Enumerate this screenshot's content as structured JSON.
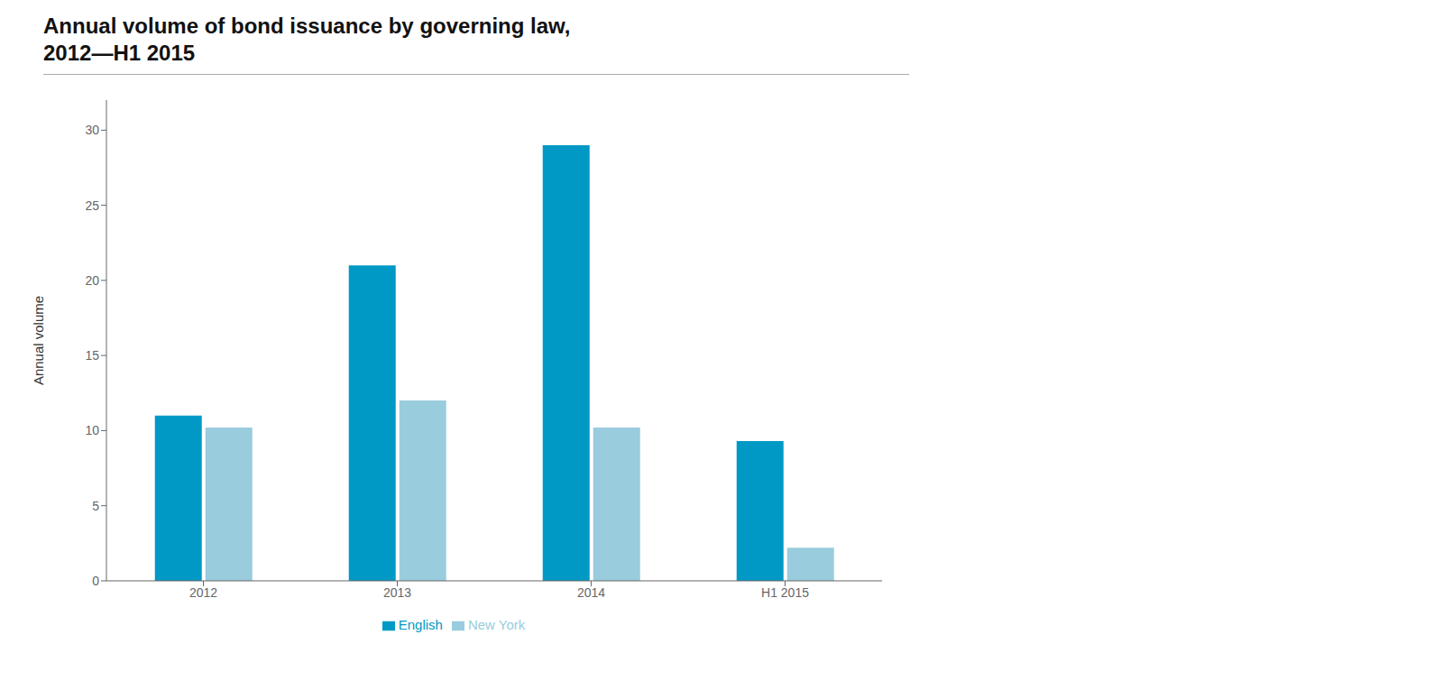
{
  "chart_data": {
    "type": "bar",
    "title": "Annual volume of bond issuance by governing law,\n2012—H1 2015",
    "categories": [
      "2012",
      "2013",
      "2014",
      "H1 2015"
    ],
    "series": [
      {
        "name": "English",
        "color": "#0099C6",
        "values": [
          11,
          21,
          29,
          9.3
        ]
      },
      {
        "name": "New York",
        "color": "#99CCDD",
        "values": [
          10.2,
          12,
          10.2,
          2.2
        ]
      }
    ],
    "ylabel": "Annual volume",
    "ylim": [
      0,
      32
    ],
    "yticks": [
      0,
      5,
      10,
      15,
      20,
      25,
      30
    ],
    "grid": false,
    "legend": "bottom"
  }
}
